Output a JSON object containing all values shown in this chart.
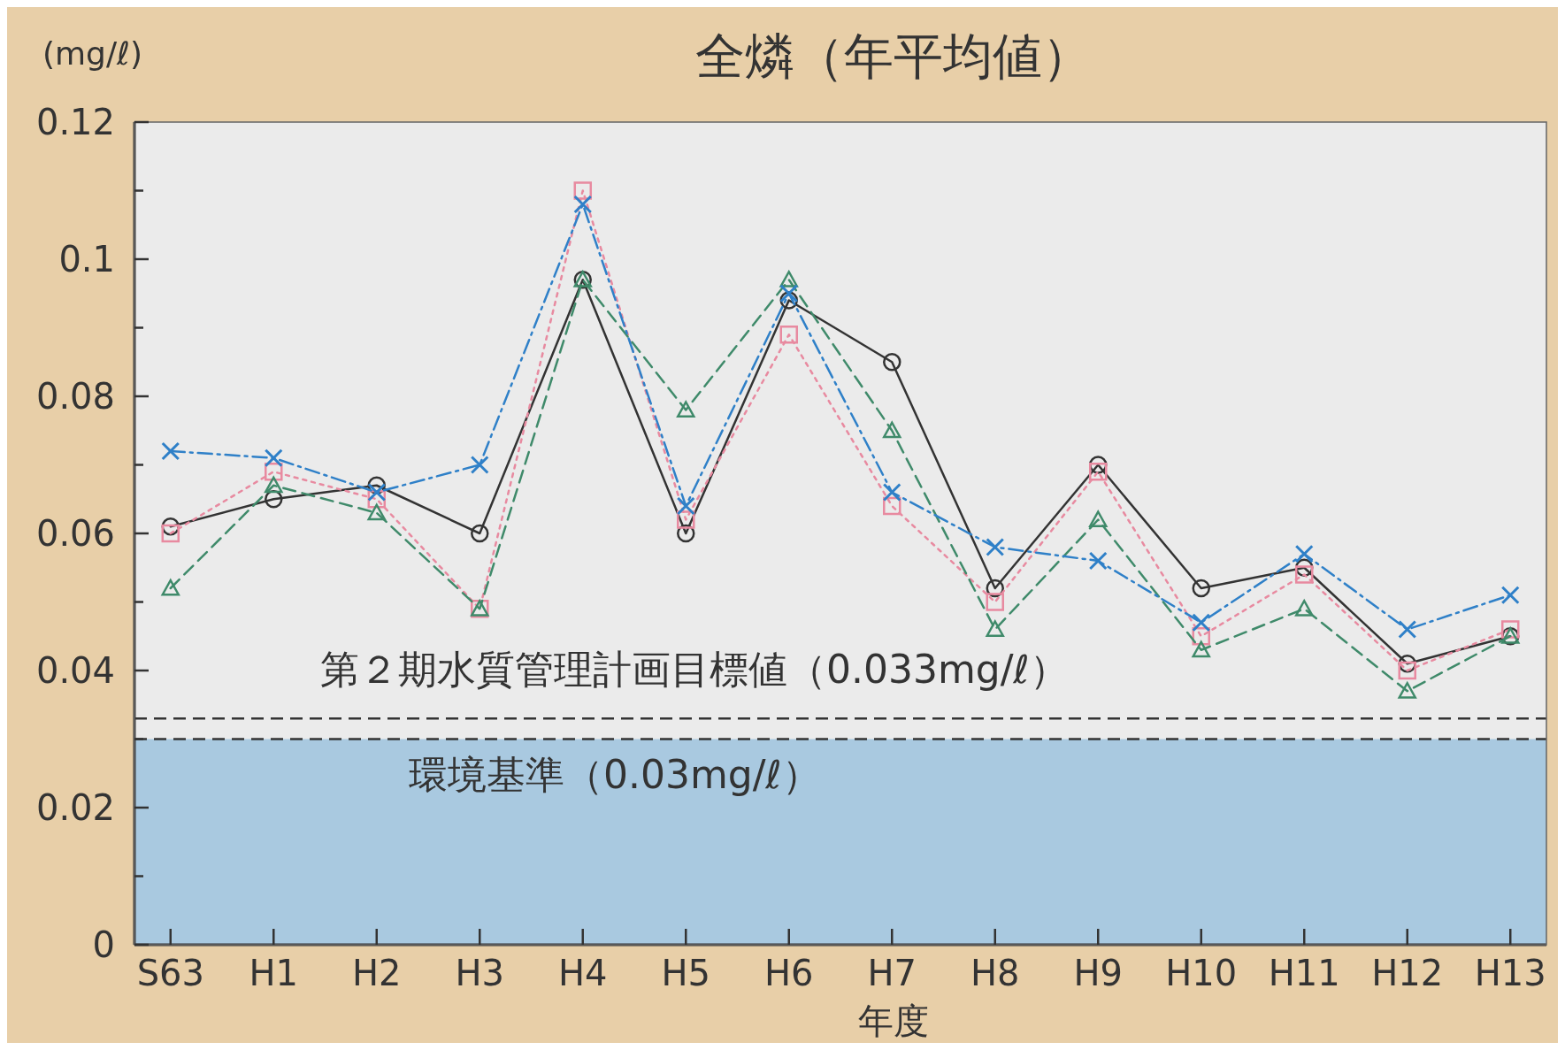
{
  "chart_data": {
    "type": "line",
    "title": "全燐（年平均値）",
    "ylabel": "(mg/ℓ)",
    "xlabel": "年度",
    "categories": [
      "S63",
      "H1",
      "H2",
      "H3",
      "H4",
      "H5",
      "H6",
      "H7",
      "H8",
      "H9",
      "H10",
      "H11",
      "H12",
      "H13"
    ],
    "series": [
      {
        "color": "#333333",
        "marker": "circle",
        "line_style": "solid",
        "values": [
          0.061,
          0.065,
          0.067,
          0.06,
          0.097,
          0.06,
          0.094,
          0.085,
          0.052,
          0.07,
          0.052,
          0.055,
          0.041,
          0.045
        ]
      },
      {
        "color": "#e88aa0",
        "marker": "square",
        "line_style": "dotted",
        "values": [
          0.06,
          0.069,
          0.065,
          0.049,
          0.11,
          0.062,
          0.089,
          0.064,
          0.05,
          0.069,
          0.045,
          0.054,
          0.04,
          0.046
        ]
      },
      {
        "color": "#3f8a6a",
        "marker": "triangle",
        "line_style": "dashed",
        "values": [
          0.052,
          0.067,
          0.063,
          0.049,
          0.097,
          0.078,
          0.097,
          0.075,
          0.046,
          0.062,
          0.043,
          0.049,
          0.037,
          0.045
        ]
      },
      {
        "color": "#2f80c8",
        "marker": "cross",
        "line_style": "dashdot",
        "values": [
          0.072,
          0.071,
          0.066,
          0.07,
          0.108,
          0.064,
          0.095,
          0.066,
          0.058,
          0.056,
          0.047,
          0.057,
          0.046,
          0.051
        ]
      }
    ],
    "ylim": [
      0,
      0.12
    ],
    "yticks": [
      0,
      {
        "value": 0.01,
        "label": null
      },
      {
        "value": 0.02,
        "label": "0.02"
      },
      {
        "value": 0.03,
        "label": null
      },
      {
        "value": 0.04,
        "label": "0.04"
      },
      {
        "value": 0.05,
        "label": null
      },
      {
        "value": 0.06,
        "label": "0.06"
      },
      {
        "value": 0.07,
        "label": null
      },
      {
        "value": 0.08,
        "label": "0.08"
      },
      {
        "value": 0.09,
        "label": null
      },
      0.1,
      {
        "value": 0.11,
        "label": null
      },
      {
        "value": 0.12,
        "label": "0.12"
      }
    ],
    "bands": [
      {
        "axis": "y",
        "from": 0,
        "to": 0.03,
        "color": "#a9c9e0"
      }
    ],
    "ref_lines": [
      {
        "axis": "y",
        "value": 0.033,
        "label": "第２期水質管理計画目標値（0.033mg/ℓ）",
        "line_style": "dashed",
        "color": "#333333"
      },
      {
        "axis": "y",
        "value": 0.03,
        "label": "環境基準（0.03mg/ℓ）",
        "line_style": "dashed",
        "color": "#333333"
      }
    ],
    "grid": false
  }
}
